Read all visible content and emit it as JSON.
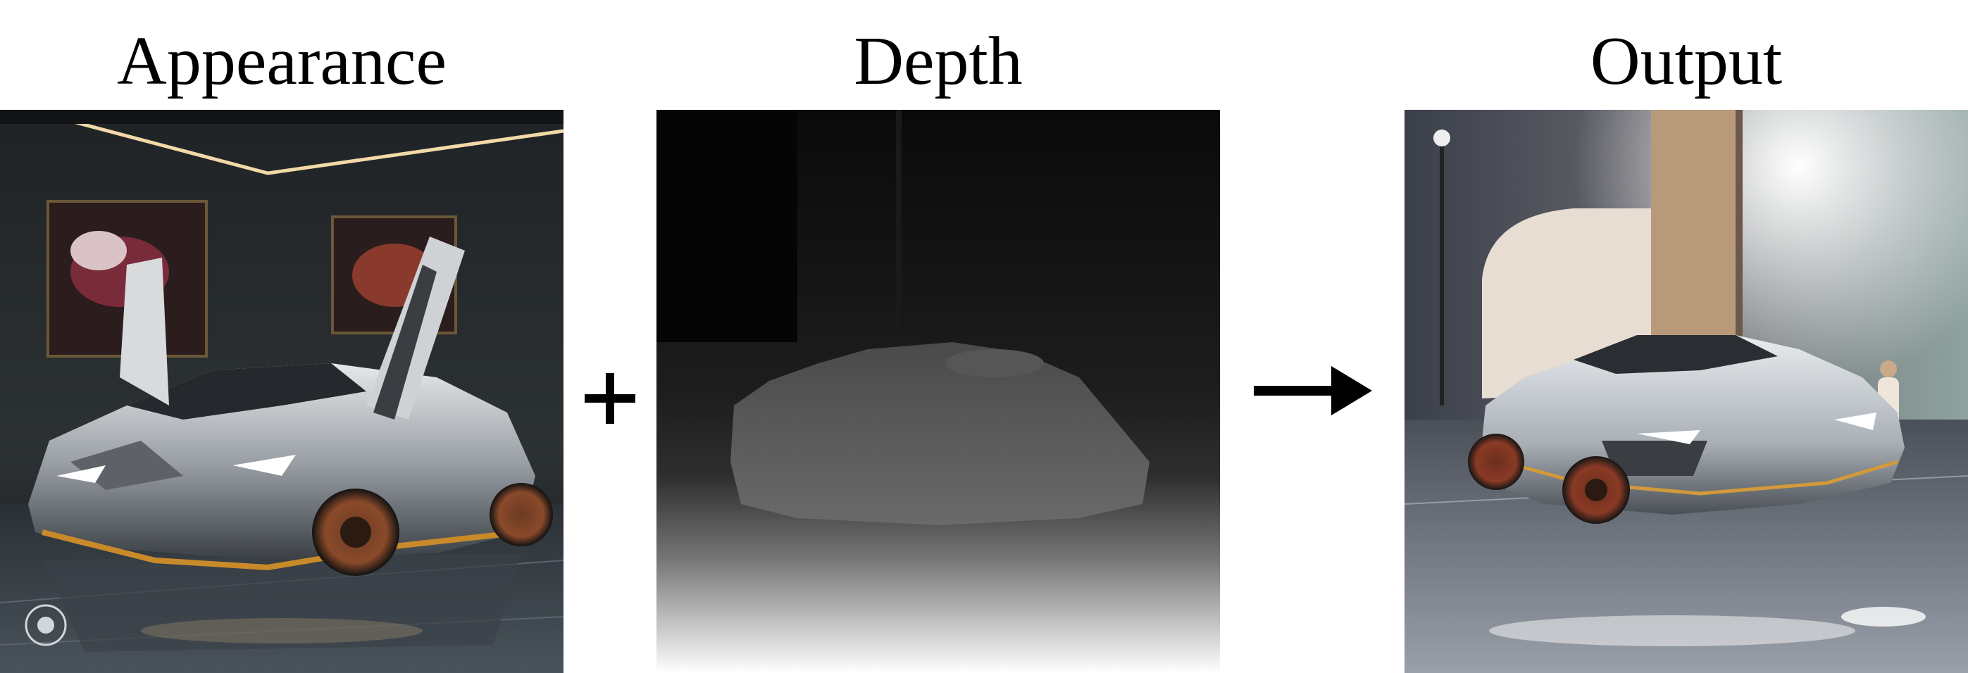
{
  "labels": {
    "appearance": "Appearance",
    "depth": "Depth",
    "output": "Output"
  },
  "images": {
    "appearance": "car-photo-gullwing-doors-dark-room",
    "depth": "grayscale-depth-map-car",
    "output": "car-photo-bright-showroom"
  },
  "operators": {
    "plus": "plus-icon",
    "arrow": "right-arrow-icon"
  },
  "colors": {
    "text": "#000000",
    "background": "#ffffff"
  }
}
